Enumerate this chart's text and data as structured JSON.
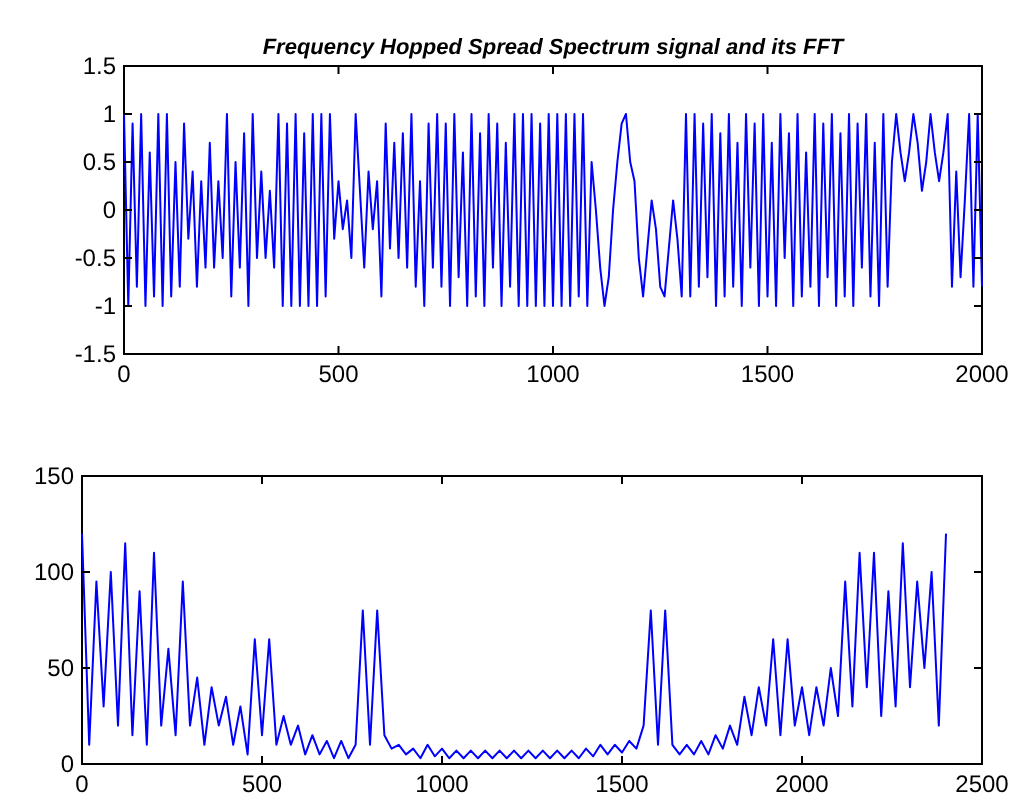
{
  "chart_data": [
    {
      "type": "line",
      "title": "Frequency Hopped Spread Spectrum signal and its FFT",
      "x": [
        0,
        10,
        20,
        30,
        40,
        50,
        60,
        70,
        80,
        90,
        100,
        110,
        120,
        130,
        140,
        150,
        160,
        170,
        180,
        190,
        200,
        210,
        220,
        230,
        240,
        250,
        260,
        270,
        280,
        290,
        300,
        310,
        320,
        330,
        340,
        350,
        360,
        370,
        380,
        390,
        400,
        410,
        420,
        430,
        440,
        450,
        460,
        470,
        480,
        490,
        500,
        510,
        520,
        530,
        540,
        550,
        560,
        570,
        580,
        590,
        600,
        610,
        620,
        630,
        640,
        650,
        660,
        670,
        680,
        690,
        700,
        710,
        720,
        730,
        740,
        750,
        760,
        770,
        780,
        790,
        800,
        810,
        820,
        830,
        840,
        850,
        860,
        870,
        880,
        890,
        900,
        910,
        920,
        930,
        940,
        950,
        960,
        970,
        980,
        990,
        1000,
        1010,
        1020,
        1030,
        1040,
        1050,
        1060,
        1070,
        1080,
        1090,
        1100,
        1110,
        1120,
        1130,
        1140,
        1150,
        1160,
        1170,
        1180,
        1190,
        1200,
        1210,
        1220,
        1230,
        1240,
        1250,
        1260,
        1270,
        1280,
        1290,
        1300,
        1310,
        1320,
        1330,
        1340,
        1350,
        1360,
        1370,
        1380,
        1390,
        1400,
        1410,
        1420,
        1430,
        1440,
        1450,
        1460,
        1470,
        1480,
        1490,
        1500,
        1510,
        1520,
        1530,
        1540,
        1550,
        1560,
        1570,
        1580,
        1590,
        1600,
        1610,
        1620,
        1630,
        1640,
        1650,
        1660,
        1670,
        1680,
        1690,
        1700,
        1710,
        1720,
        1730,
        1740,
        1750,
        1760,
        1770,
        1780,
        1790,
        1800,
        1810,
        1820,
        1830,
        1840,
        1850,
        1860,
        1870,
        1880,
        1890,
        1900,
        1910,
        1920,
        1930,
        1940,
        1950,
        1960,
        1970,
        1980,
        1990,
        2000
      ],
      "series": [
        {
          "color": "#0000ff",
          "values": [
            1,
            -1,
            0.9,
            -0.8,
            1,
            -1,
            0.6,
            -0.9,
            1,
            -1,
            1,
            -0.9,
            0.5,
            -0.8,
            0.9,
            -0.3,
            0.4,
            -0.8,
            0.3,
            -0.6,
            0.7,
            -0.6,
            0.3,
            -0.5,
            1,
            -0.9,
            0.5,
            -0.6,
            0.8,
            -1,
            1,
            -0.5,
            0.4,
            -0.5,
            0.2,
            -0.6,
            1,
            -1,
            0.9,
            -1,
            1,
            -1,
            0.8,
            -1,
            1,
            -1,
            1,
            -0.9,
            1,
            -0.3,
            0.3,
            -0.2,
            0.1,
            -0.5,
            1,
            0.2,
            -0.6,
            0.4,
            -0.2,
            0.3,
            -0.9,
            0.9,
            -0.4,
            0.7,
            -0.5,
            0.8,
            -0.6,
            1,
            -0.8,
            0.3,
            -1,
            0.9,
            -0.6,
            1,
            -0.8,
            0.9,
            -1,
            1,
            -0.7,
            0.6,
            -1,
            1,
            -0.9,
            0.8,
            -1,
            1,
            -0.6,
            0.9,
            -1,
            0.7,
            -0.8,
            1,
            -1,
            1,
            -1,
            1,
            -1,
            0.9,
            -1,
            1,
            -1,
            1,
            -1,
            1,
            -1,
            1,
            -0.9,
            1,
            -1,
            0.5,
            0,
            -0.6,
            -1,
            -0.7,
            0,
            0.5,
            0.9,
            1,
            0.5,
            0.3,
            -0.5,
            -0.9,
            -0.4,
            0.1,
            -0.2,
            -0.8,
            -0.9,
            -0.4,
            0.1,
            -0.3,
            -0.9,
            1,
            -0.9,
            1,
            -0.8,
            0.9,
            -0.7,
            1,
            -1,
            0.8,
            -0.9,
            1,
            -0.8,
            0.7,
            -1,
            1,
            -0.6,
            0.9,
            -1,
            1,
            -0.9,
            0.7,
            -1,
            1,
            -0.5,
            0.8,
            -1,
            1,
            -0.9,
            0.6,
            -0.8,
            1,
            -1,
            0.9,
            -0.7,
            1,
            -1,
            0.8,
            -0.9,
            1,
            -1,
            0.9,
            -0.6,
            1,
            -0.9,
            0.7,
            -1,
            1,
            -0.8,
            0.5,
            1,
            0.6,
            0.3,
            0.6,
            1,
            0.7,
            0.2,
            0.5,
            1,
            0.6,
            0.3,
            0.6,
            1,
            -0.8,
            0.4,
            -0.7,
            0.1,
            1,
            -0.8,
            1,
            -0.8
          ]
        }
      ],
      "xlim": [
        0,
        2000
      ],
      "xticks": [
        0,
        500,
        1000,
        1500,
        2000
      ],
      "ylim": [
        -1.5,
        1.5
      ],
      "yticks": [
        -1.5,
        -1,
        -0.5,
        0,
        0.5,
        1,
        1.5
      ]
    },
    {
      "type": "line",
      "x": [
        0,
        20,
        40,
        60,
        80,
        100,
        120,
        140,
        160,
        180,
        200,
        220,
        240,
        260,
        280,
        300,
        320,
        340,
        360,
        380,
        400,
        420,
        440,
        460,
        480,
        500,
        520,
        540,
        560,
        580,
        600,
        620,
        640,
        660,
        680,
        700,
        720,
        740,
        760,
        780,
        800,
        820,
        840,
        860,
        880,
        900,
        920,
        940,
        960,
        980,
        1000,
        1020,
        1040,
        1060,
        1080,
        1100,
        1120,
        1140,
        1160,
        1180,
        1200,
        1220,
        1240,
        1260,
        1280,
        1300,
        1320,
        1340,
        1360,
        1380,
        1400,
        1420,
        1440,
        1460,
        1480,
        1500,
        1520,
        1540,
        1560,
        1580,
        1600,
        1620,
        1640,
        1660,
        1680,
        1700,
        1720,
        1740,
        1760,
        1780,
        1800,
        1820,
        1840,
        1860,
        1880,
        1900,
        1920,
        1940,
        1960,
        1980,
        2000,
        2020,
        2040,
        2060,
        2080,
        2100,
        2120,
        2140,
        2160,
        2180,
        2200,
        2220,
        2240,
        2260,
        2280,
        2300,
        2320,
        2340,
        2360,
        2380,
        2400
      ],
      "series": [
        {
          "color": "#0000ff",
          "values": [
            120,
            10,
            95,
            30,
            100,
            20,
            115,
            15,
            90,
            10,
            110,
            20,
            60,
            15,
            95,
            20,
            45,
            10,
            40,
            20,
            35,
            10,
            30,
            5,
            65,
            15,
            65,
            10,
            25,
            10,
            20,
            5,
            15,
            5,
            12,
            3,
            12,
            3,
            10,
            80,
            10,
            80,
            15,
            8,
            10,
            5,
            8,
            3,
            10,
            4,
            8,
            3,
            7,
            3,
            7,
            3,
            7,
            3,
            7,
            3,
            7,
            3,
            7,
            3,
            7,
            3,
            7,
            3,
            7,
            3,
            8,
            4,
            10,
            5,
            10,
            6,
            12,
            8,
            20,
            80,
            10,
            80,
            10,
            5,
            10,
            5,
            12,
            5,
            15,
            8,
            20,
            10,
            35,
            15,
            40,
            20,
            65,
            15,
            65,
            20,
            40,
            15,
            40,
            20,
            50,
            25,
            95,
            30,
            110,
            40,
            110,
            25,
            90,
            30,
            115,
            40,
            95,
            50,
            100,
            20,
            120
          ]
        }
      ],
      "xlim": [
        0,
        2500
      ],
      "xticks": [
        0,
        500,
        1000,
        1500,
        2000,
        2500
      ],
      "ylim": [
        0,
        150
      ],
      "yticks": [
        0,
        50,
        100,
        150
      ]
    }
  ]
}
